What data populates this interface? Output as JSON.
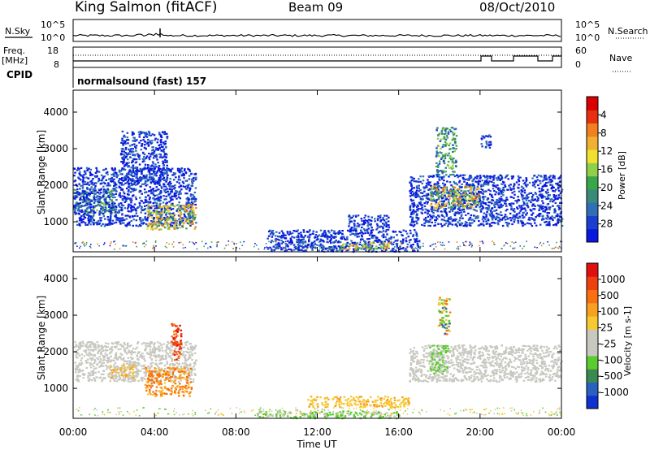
{
  "header": {
    "station": "King Salmon (fitACF)",
    "beam": "Beam 09",
    "date": "08/Oct/2010"
  },
  "noise_panel": {
    "left_label": "N.Sky",
    "right_label": "N.Search",
    "left_ticks": [
      "10^5",
      "10^0"
    ],
    "right_ticks": [
      "10^5",
      "10^0"
    ]
  },
  "freq_panel": {
    "left_label_1": "Freq.",
    "left_label_2": "[MHz]",
    "right_label": "Nave",
    "left_ticks": [
      "18",
      "8"
    ],
    "right_ticks": [
      "60",
      "0"
    ]
  },
  "cpid_panel": {
    "label": "CPID",
    "mode": "normalsound (fast) 157"
  },
  "x_axis": {
    "title": "Time UT",
    "ticks": [
      "00:00",
      "04:00",
      "08:00",
      "12:00",
      "16:00",
      "20:00",
      "00:00"
    ]
  },
  "chart_data": [
    {
      "type": "heatmap",
      "title": "Power",
      "ylabel": "Slant Range [km]",
      "xlabel": "Time UT",
      "xlim": [
        0,
        24
      ],
      "ylim": [
        180,
        4600
      ],
      "yticks": [
        "1000",
        "2000",
        "3000",
        "4000"
      ],
      "colorbar": {
        "label": "Power [dB]",
        "ticks": [
          "4",
          "8",
          "12",
          "16",
          "20",
          "24",
          "28"
        ],
        "colors": [
          "#0818e0",
          "#1a3fd0",
          "#2f6fb5",
          "#3a8a7a",
          "#3aa64a",
          "#8ed04a",
          "#f0e030",
          "#f0b030",
          "#f08020",
          "#e83010",
          "#d80000"
        ]
      },
      "regions": [
        {
          "t0": 0.0,
          "t1": 2.0,
          "r0": 1200,
          "r1": 1900,
          "level": "medium"
        },
        {
          "t0": 0.0,
          "t1": 6.0,
          "r0": 900,
          "r1": 2500,
          "level": "low"
        },
        {
          "t0": 3.6,
          "t1": 6.0,
          "r0": 800,
          "r1": 1500,
          "level": "high"
        },
        {
          "t0": 2.3,
          "t1": 4.6,
          "r0": 2100,
          "r1": 3500,
          "level": "low"
        },
        {
          "t0": 9.5,
          "t1": 17.0,
          "r0": 200,
          "r1": 800,
          "level": "low"
        },
        {
          "t0": 13.0,
          "t1": 15.5,
          "r0": 250,
          "r1": 450,
          "level": "high"
        },
        {
          "t0": 13.5,
          "t1": 15.5,
          "r0": 800,
          "r1": 1200,
          "level": "low"
        },
        {
          "t0": 16.5,
          "t1": 24.0,
          "r0": 900,
          "r1": 2300,
          "level": "low"
        },
        {
          "t0": 17.5,
          "t1": 20.0,
          "r0": 1400,
          "r1": 2000,
          "level": "high"
        },
        {
          "t0": 17.8,
          "t1": 18.8,
          "r0": 2300,
          "r1": 3600,
          "level": "medium"
        },
        {
          "t0": 20.0,
          "t1": 20.5,
          "r0": 3000,
          "r1": 3400,
          "level": "low"
        }
      ]
    },
    {
      "type": "heatmap",
      "title": "Velocity",
      "ylabel": "Slant Range [km]",
      "xlabel": "Time UT",
      "xlim": [
        0,
        24
      ],
      "ylim": [
        180,
        4600
      ],
      "yticks": [
        "1000",
        "2000",
        "3000",
        "4000"
      ],
      "colorbar": {
        "label": "Velocity [m s-1]",
        "ticks": [
          "1000",
          "500",
          "100",
          "25",
          "-25",
          "-100",
          "-500",
          "-1000"
        ],
        "colors": [
          "#1030d0",
          "#2a60c0",
          "#3a8a50",
          "#5acc30",
          "#c8c8c0",
          "#c8c8c0",
          "#f8c830",
          "#f8a020",
          "#f87010",
          "#f04010",
          "#e01010"
        ]
      },
      "regions": [
        {
          "t0": 0.0,
          "t1": 6.0,
          "r0": 1200,
          "r1": 2300,
          "level": "ground"
        },
        {
          "t0": 3.5,
          "t1": 5.8,
          "r0": 800,
          "r1": 1600,
          "level": "away_fast"
        },
        {
          "t0": 1.8,
          "t1": 3.0,
          "r0": 1300,
          "r1": 1700,
          "level": "away"
        },
        {
          "t0": 4.8,
          "t1": 5.3,
          "r0": 1800,
          "r1": 2800,
          "level": "away_max"
        },
        {
          "t0": 11.5,
          "t1": 16.5,
          "r0": 500,
          "r1": 800,
          "level": "away_slow"
        },
        {
          "t0": 9.0,
          "t1": 16.0,
          "r0": 200,
          "r1": 400,
          "level": "toward_slow"
        },
        {
          "t0": 16.5,
          "t1": 24.0,
          "r0": 1200,
          "r1": 2200,
          "level": "ground"
        },
        {
          "t0": 17.5,
          "t1": 18.4,
          "r0": 1400,
          "r1": 2200,
          "level": "toward_slow"
        },
        {
          "t0": 17.9,
          "t1": 18.5,
          "r0": 2500,
          "r1": 3500,
          "level": "mixed"
        }
      ]
    }
  ]
}
